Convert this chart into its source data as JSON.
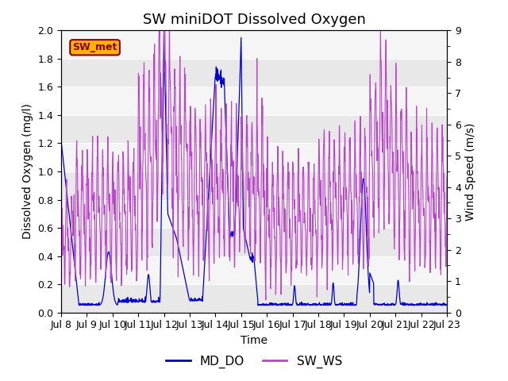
{
  "title": "SW miniDOT Dissolved Oxygen",
  "ylabel_left": "Dissolved Oxygen (mg/l)",
  "ylabel_right": "Wind Speed (m/s)",
  "xlabel": "Time",
  "ylim_left": [
    0.0,
    2.0
  ],
  "ylim_right": [
    0.0,
    9.0
  ],
  "yticks_left": [
    0.0,
    0.2,
    0.4,
    0.6,
    0.8,
    1.0,
    1.2,
    1.4,
    1.6,
    1.8,
    2.0
  ],
  "yticks_right": [
    0.0,
    1.0,
    2.0,
    3.0,
    4.0,
    5.0,
    6.0,
    7.0,
    8.0,
    9.0
  ],
  "line_do_color": "#0000CD",
  "line_ws_color": "#BB44CC",
  "legend_labels": [
    "MD_DO",
    "SW_WS"
  ],
  "annotation_text": "SW_met",
  "annotation_bg": "#FFB300",
  "annotation_fc": "#8B0000",
  "bg_band_dark": "#E8E8E8",
  "bg_band_light": "#F5F5F5",
  "title_fontsize": 13,
  "label_fontsize": 10,
  "tick_fontsize": 9,
  "legend_fontsize": 11
}
